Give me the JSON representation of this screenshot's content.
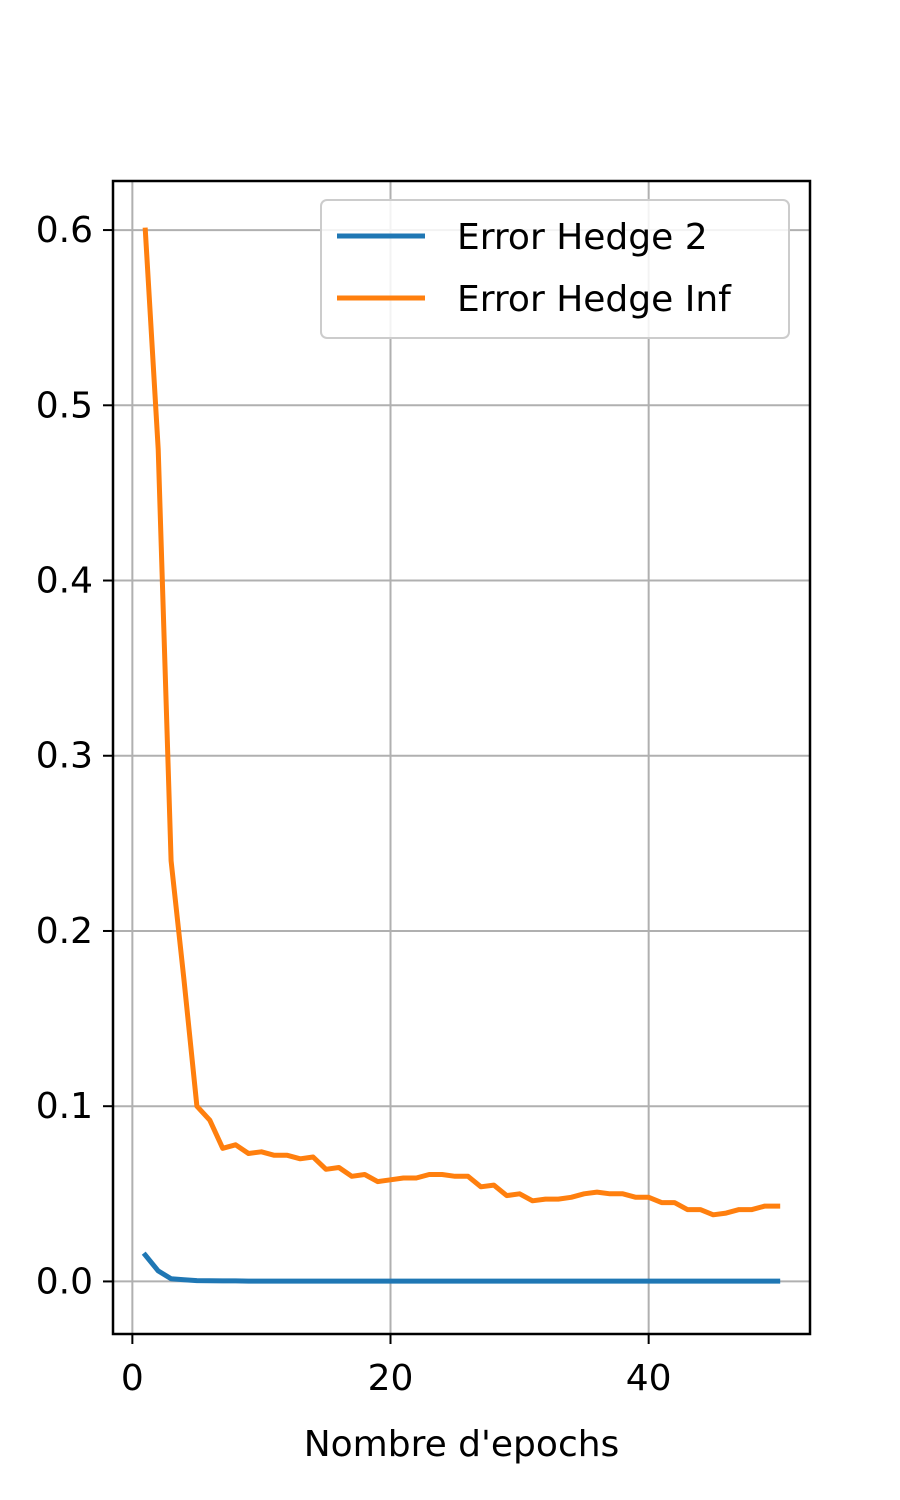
{
  "chart_data": {
    "type": "line",
    "title": "",
    "xlabel": "Nombre d'epochs",
    "ylabel": "",
    "xlim": [
      -1.5,
      52.5
    ],
    "ylim": [
      -0.03,
      0.628
    ],
    "xticks": [
      0,
      20,
      40
    ],
    "xtick_labels": [
      "0",
      "20",
      "40"
    ],
    "yticks": [
      0.0,
      0.1,
      0.2,
      0.3,
      0.4,
      0.5,
      0.6
    ],
    "ytick_labels": [
      "0.0",
      "0.1",
      "0.2",
      "0.3",
      "0.4",
      "0.5",
      "0.6"
    ],
    "grid": true,
    "legend_position": "top-right",
    "series": [
      {
        "name": "Error Hedge 2",
        "color": "#1f77b4",
        "x": [
          1,
          2,
          3,
          4,
          5,
          6,
          7,
          8,
          9,
          10,
          11,
          12,
          13,
          14,
          15,
          16,
          17,
          18,
          19,
          20,
          21,
          22,
          23,
          24,
          25,
          26,
          27,
          28,
          29,
          30,
          31,
          32,
          33,
          34,
          35,
          36,
          37,
          38,
          39,
          40,
          41,
          42,
          43,
          44,
          45,
          46,
          47,
          48,
          49,
          50
        ],
        "values": [
          0.015,
          0.006,
          0.0015,
          0.001,
          0.0005,
          0.0004,
          0.0003,
          0.0003,
          0.0002,
          0.0002,
          0.0002,
          0.0002,
          0.0002,
          0.0002,
          0.0002,
          0.0002,
          0.0002,
          0.0002,
          0.0002,
          0.0002,
          0.0002,
          0.0002,
          0.0002,
          0.0002,
          0.0002,
          0.0002,
          0.0002,
          0.0002,
          0.0002,
          0.0002,
          0.0002,
          0.0002,
          0.0002,
          0.0002,
          0.0002,
          0.0002,
          0.0002,
          0.0002,
          0.0002,
          0.0002,
          0.0002,
          0.0002,
          0.0002,
          0.0002,
          0.0002,
          0.0002,
          0.0002,
          0.0002,
          0.0002,
          0.0002
        ]
      },
      {
        "name": "Error Hedge Inf",
        "color": "#ff7f0e",
        "x": [
          1,
          2,
          3,
          4,
          5,
          6,
          7,
          8,
          9,
          10,
          11,
          12,
          13,
          14,
          15,
          16,
          17,
          18,
          19,
          20,
          21,
          22,
          23,
          24,
          25,
          26,
          27,
          28,
          29,
          30,
          31,
          32,
          33,
          34,
          35,
          36,
          37,
          38,
          39,
          40,
          41,
          42,
          43,
          44,
          45,
          46,
          47,
          48,
          49,
          50
        ],
        "values": [
          0.6,
          0.475,
          0.24,
          0.172,
          0.1,
          0.092,
          0.076,
          0.078,
          0.073,
          0.074,
          0.072,
          0.072,
          0.07,
          0.071,
          0.064,
          0.065,
          0.06,
          0.061,
          0.057,
          0.058,
          0.059,
          0.059,
          0.061,
          0.061,
          0.06,
          0.06,
          0.054,
          0.055,
          0.049,
          0.05,
          0.046,
          0.047,
          0.047,
          0.048,
          0.05,
          0.051,
          0.05,
          0.05,
          0.048,
          0.048,
          0.045,
          0.045,
          0.041,
          0.041,
          0.038,
          0.039,
          0.041,
          0.041,
          0.043,
          0.043
        ]
      }
    ]
  }
}
